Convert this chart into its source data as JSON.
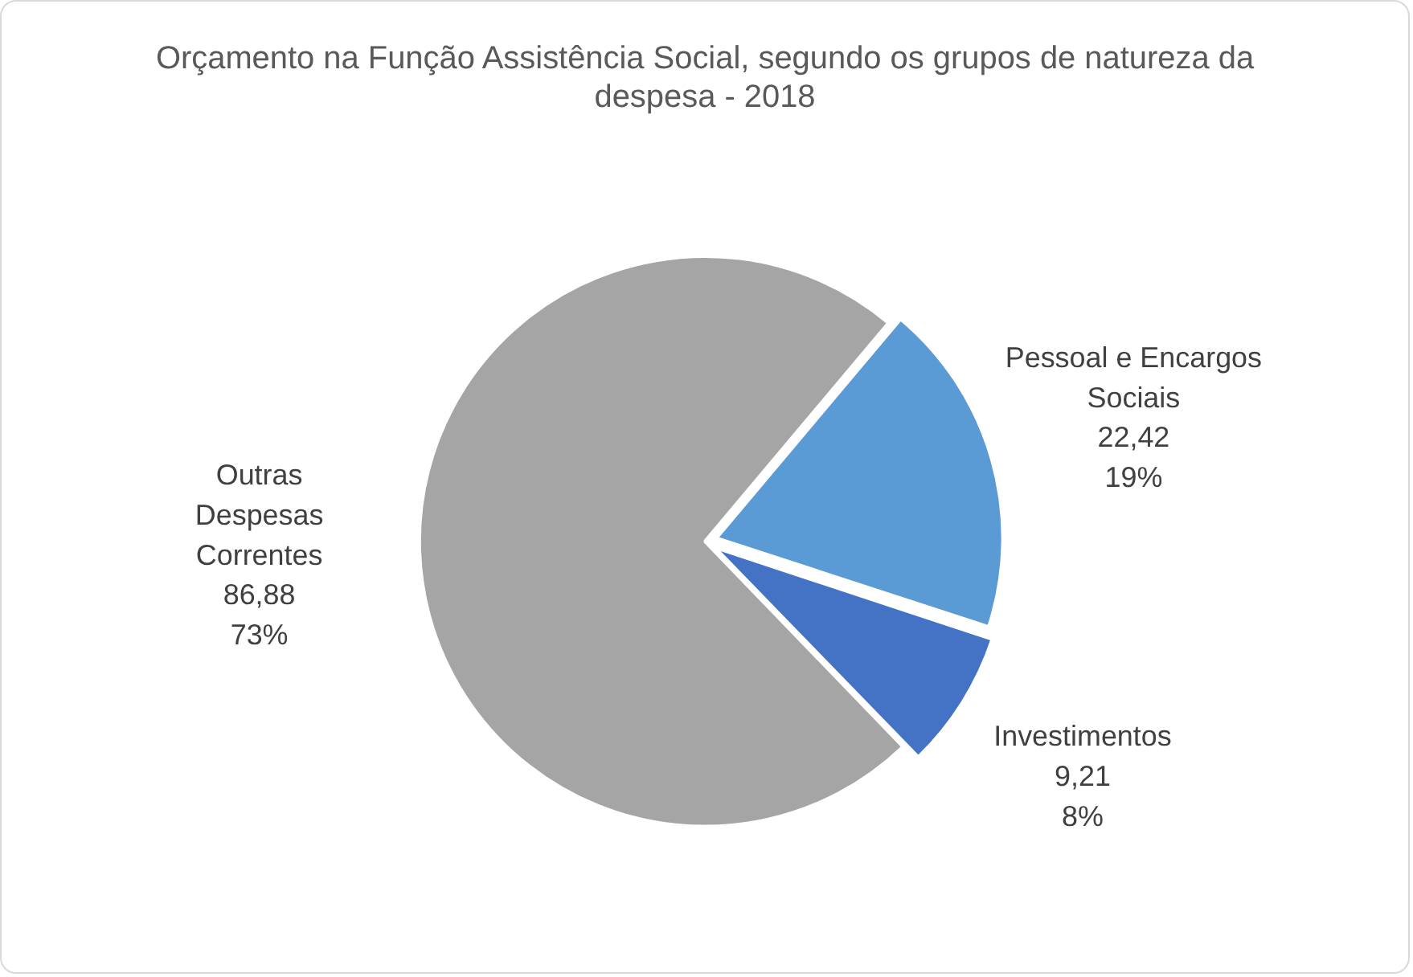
{
  "chart_data": {
    "type": "pie",
    "title": "Orçamento na Função Assistência Social, segundo os grupos de natureza da despesa - 2018",
    "categories": [
      "Pessoal e Encargos Sociais",
      "Investimentos",
      "Outras Despesas Correntes"
    ],
    "values": [
      22.42,
      9.21,
      86.88
    ],
    "colors": [
      "#5b9bd5",
      "#4472c4",
      "#a5a5a5"
    ],
    "value_labels": [
      "22,42\n19%",
      "9,21\n8%",
      "86,88\n73%"
    ],
    "legend": false
  }
}
